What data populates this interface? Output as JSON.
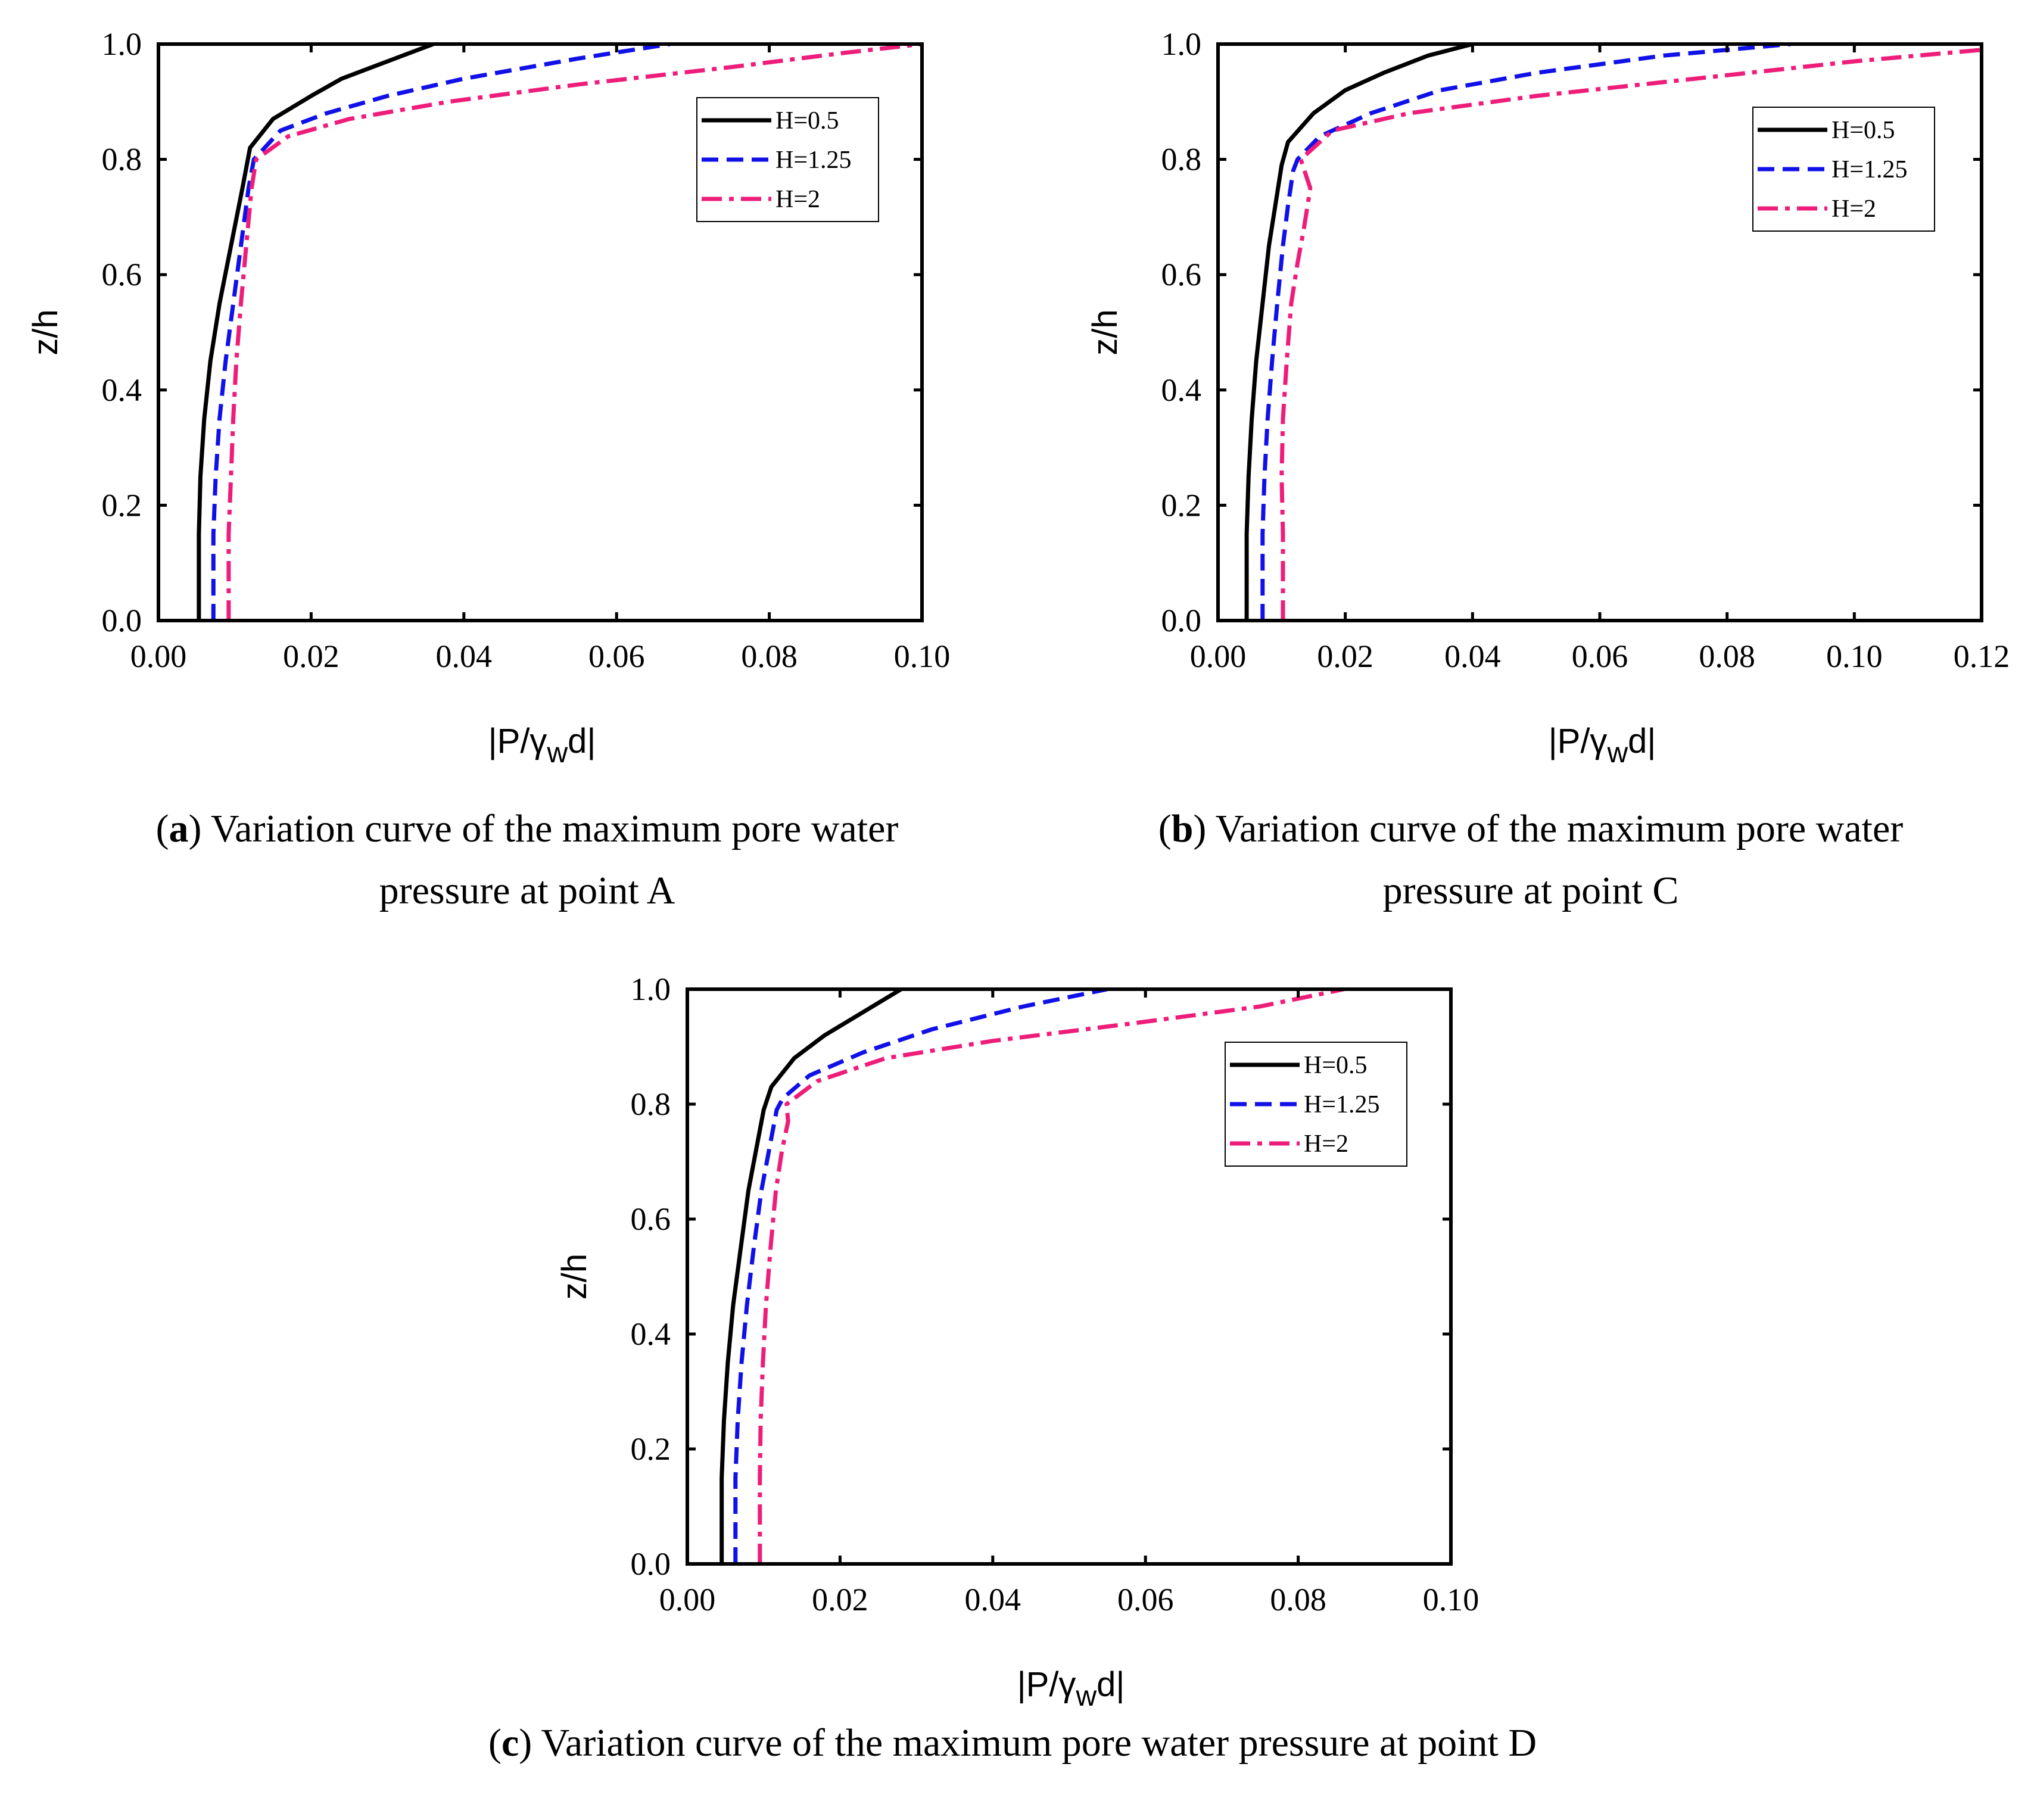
{
  "legend": [
    "H=0.5",
    "H=1.25",
    "H=2"
  ],
  "colors": {
    "H=0.5": "#000000",
    "H=1.25": "#1010e8",
    "H=2": "#ee1d7a"
  },
  "captions": [
    {
      "letter": "a",
      "line1": ") Variation curve of the maximum pore water",
      "line2": "pressure at point A"
    },
    {
      "letter": "b",
      "line1": ") Variation curve of the maximum pore water",
      "line2": "pressure at point C"
    },
    {
      "letter": "c",
      "line1": ") Variation curve of the maximum pore water pressure at point D",
      "line2": ""
    }
  ],
  "chart_data": [
    {
      "type": "line",
      "xlabel": "|P/γwd|",
      "ylabel": "z/h",
      "xlim": [
        0,
        0.1
      ],
      "ylim": [
        0,
        1.0
      ],
      "xticks": [
        "0.00",
        "0.02",
        "0.04",
        "0.06",
        "0.08",
        "0.10"
      ],
      "yticks": [
        "0.0",
        "0.2",
        "0.4",
        "0.6",
        "0.8",
        "1.0"
      ],
      "legend_position": "top-right",
      "series": [
        {
          "name": "H=0.5",
          "style": "solid",
          "x": [
            0.0053,
            0.0053,
            0.0055,
            0.006,
            0.0068,
            0.008,
            0.0095,
            0.011,
            0.012,
            0.015,
            0.02,
            0.024,
            0.03,
            0.036
          ],
          "y": [
            0.0,
            0.15,
            0.25,
            0.35,
            0.45,
            0.55,
            0.65,
            0.75,
            0.82,
            0.87,
            0.91,
            0.94,
            0.97,
            1.0
          ]
        },
        {
          "name": "H=1.25",
          "style": "dashed",
          "x": [
            0.0072,
            0.0072,
            0.0075,
            0.008,
            0.0088,
            0.0098,
            0.0108,
            0.0118,
            0.0125,
            0.016,
            0.022,
            0.03,
            0.04,
            0.055,
            0.067
          ],
          "y": [
            0.0,
            0.15,
            0.25,
            0.35,
            0.45,
            0.55,
            0.65,
            0.75,
            0.8,
            0.85,
            0.88,
            0.91,
            0.94,
            0.975,
            1.0
          ]
        },
        {
          "name": "H=2",
          "style": "dashdot",
          "x": [
            0.0092,
            0.0092,
            0.0095,
            0.0098,
            0.0102,
            0.0108,
            0.0115,
            0.0122,
            0.0128,
            0.017,
            0.025,
            0.038,
            0.055,
            0.075,
            0.09,
            0.1
          ],
          "y": [
            0.0,
            0.15,
            0.25,
            0.35,
            0.45,
            0.55,
            0.65,
            0.75,
            0.8,
            0.84,
            0.87,
            0.9,
            0.93,
            0.96,
            0.985,
            1.0
          ]
        }
      ]
    },
    {
      "type": "line",
      "xlabel": "|P/γwd|",
      "ylabel": "z/h",
      "xlim": [
        0,
        0.12
      ],
      "ylim": [
        0,
        1.0
      ],
      "xticks": [
        "0.00",
        "0.02",
        "0.04",
        "0.06",
        "0.08",
        "0.10",
        "0.12"
      ],
      "yticks": [
        "0.0",
        "0.2",
        "0.4",
        "0.6",
        "0.8",
        "1.0"
      ],
      "legend_position": "top-right",
      "series": [
        {
          "name": "H=0.5",
          "style": "solid",
          "x": [
            0.0045,
            0.0045,
            0.0048,
            0.0053,
            0.006,
            0.007,
            0.008,
            0.009,
            0.01,
            0.011,
            0.015,
            0.02,
            0.026,
            0.033,
            0.04
          ],
          "y": [
            0.0,
            0.15,
            0.25,
            0.35,
            0.45,
            0.55,
            0.65,
            0.72,
            0.79,
            0.83,
            0.88,
            0.92,
            0.95,
            0.98,
            1.0
          ]
        },
        {
          "name": "H=1.25",
          "style": "dashed",
          "x": [
            0.007,
            0.007,
            0.0073,
            0.0078,
            0.0085,
            0.0093,
            0.0102,
            0.011,
            0.0118,
            0.0125,
            0.016,
            0.024,
            0.035,
            0.05,
            0.07,
            0.09
          ],
          "y": [
            0.0,
            0.15,
            0.25,
            0.35,
            0.45,
            0.55,
            0.65,
            0.72,
            0.78,
            0.8,
            0.84,
            0.88,
            0.92,
            0.95,
            0.98,
            1.0
          ]
        },
        {
          "name": "H=2",
          "style": "dashdot",
          "x": [
            0.0102,
            0.0102,
            0.01,
            0.0102,
            0.0108,
            0.0115,
            0.0125,
            0.0135,
            0.0145,
            0.013,
            0.018,
            0.03,
            0.05,
            0.075,
            0.1,
            0.12
          ],
          "y": [
            0.0,
            0.15,
            0.25,
            0.35,
            0.45,
            0.55,
            0.62,
            0.68,
            0.75,
            0.8,
            0.85,
            0.88,
            0.91,
            0.94,
            0.97,
            0.99
          ]
        }
      ]
    },
    {
      "type": "line",
      "xlabel": "|P/γwd|",
      "ylabel": "z/h",
      "xlim": [
        0,
        0.1
      ],
      "ylim": [
        0,
        1.0
      ],
      "xticks": [
        "0.00",
        "0.02",
        "0.04",
        "0.06",
        "0.08",
        "0.10"
      ],
      "yticks": [
        "0.0",
        "0.2",
        "0.4",
        "0.6",
        "0.8",
        "1.0"
      ],
      "legend_position": "top-right",
      "series": [
        {
          "name": "H=0.5",
          "style": "solid",
          "x": [
            0.0045,
            0.0045,
            0.0048,
            0.0053,
            0.006,
            0.007,
            0.008,
            0.009,
            0.01,
            0.011,
            0.014,
            0.018,
            0.023,
            0.028
          ],
          "y": [
            0.0,
            0.15,
            0.25,
            0.35,
            0.45,
            0.55,
            0.65,
            0.72,
            0.79,
            0.83,
            0.88,
            0.92,
            0.96,
            1.0
          ]
        },
        {
          "name": "H=1.25",
          "style": "dashed",
          "x": [
            0.0063,
            0.0063,
            0.0066,
            0.0071,
            0.0078,
            0.0087,
            0.0097,
            0.0107,
            0.0117,
            0.0125,
            0.016,
            0.023,
            0.032,
            0.044,
            0.055
          ],
          "y": [
            0.0,
            0.15,
            0.25,
            0.35,
            0.45,
            0.55,
            0.65,
            0.72,
            0.79,
            0.81,
            0.85,
            0.89,
            0.93,
            0.97,
            1.0
          ]
        },
        {
          "name": "H=2",
          "style": "dashdot",
          "x": [
            0.0095,
            0.0095,
            0.0096,
            0.0099,
            0.0103,
            0.0109,
            0.0116,
            0.0124,
            0.0132,
            0.013,
            0.017,
            0.026,
            0.04,
            0.058,
            0.075,
            0.086
          ],
          "y": [
            0.0,
            0.15,
            0.25,
            0.35,
            0.45,
            0.55,
            0.65,
            0.72,
            0.77,
            0.8,
            0.84,
            0.88,
            0.91,
            0.94,
            0.97,
            1.0
          ]
        }
      ]
    }
  ]
}
